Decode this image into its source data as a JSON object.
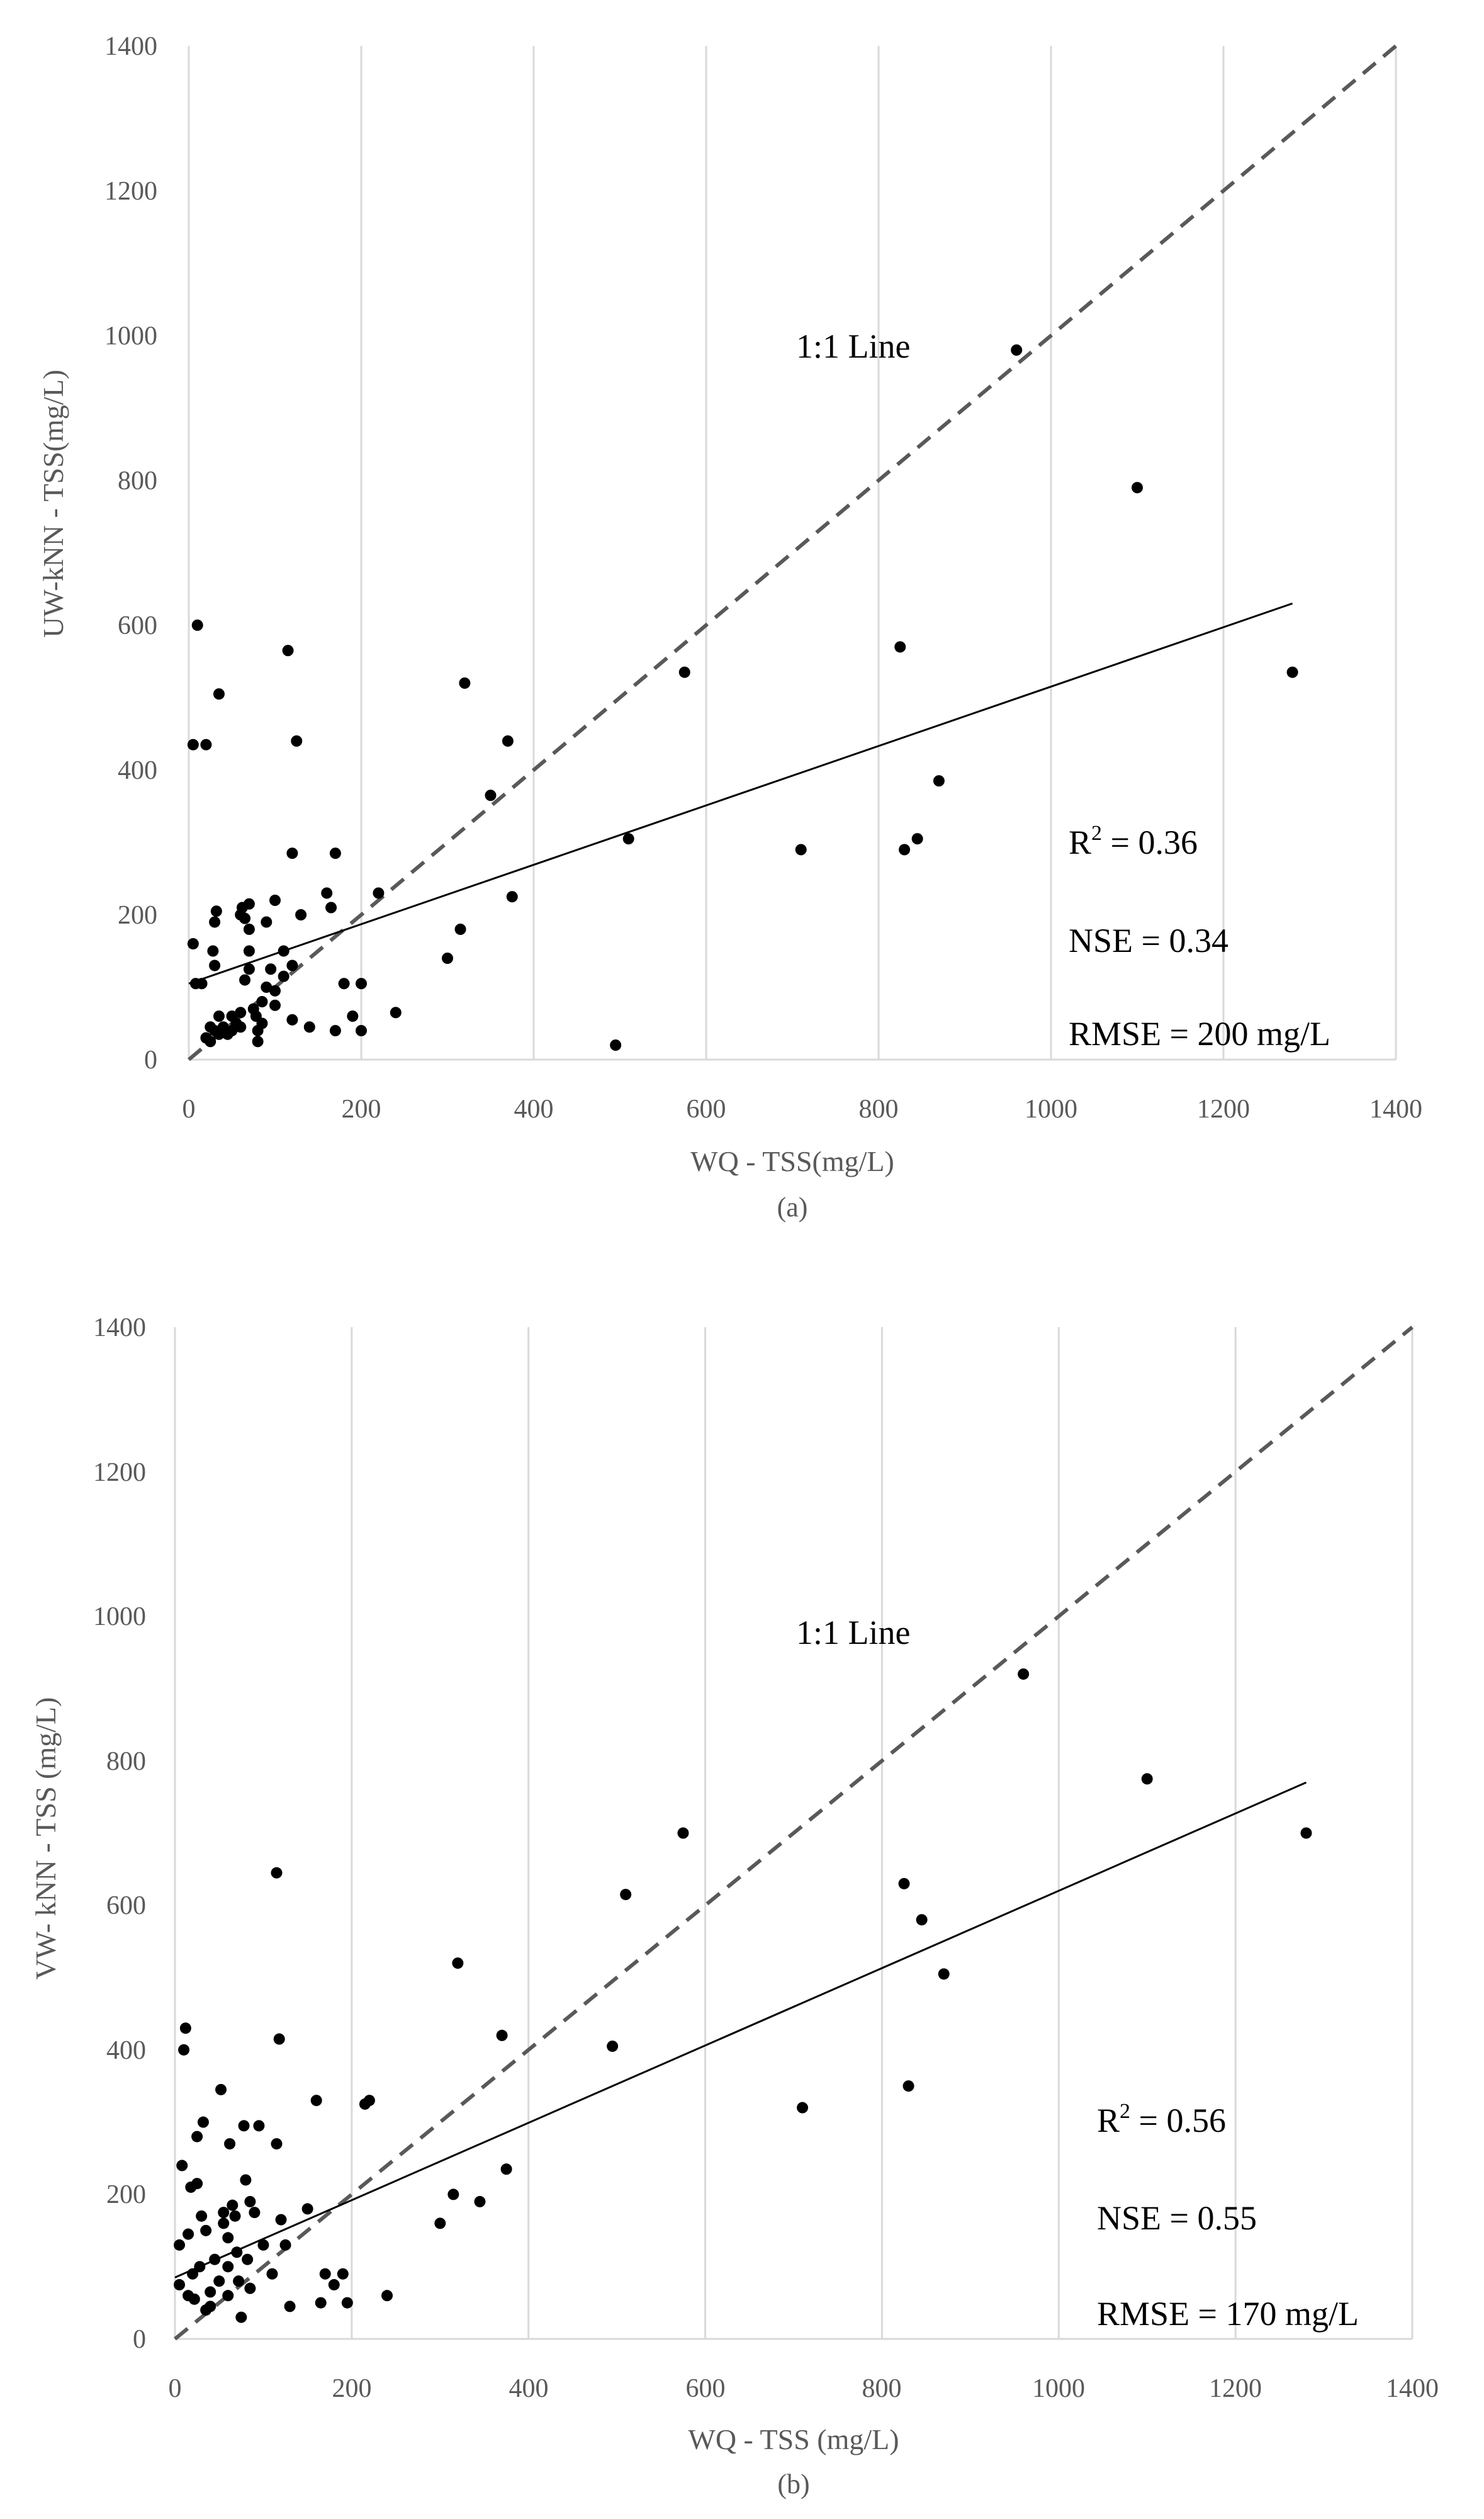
{
  "chart_data": [
    {
      "type": "scatter",
      "title": "",
      "panel_label": "(a)",
      "xlabel": "WQ - TSS(mg/L)",
      "ylabel": "UW-kNN - TSS(mg/L)",
      "xlim": [
        0,
        1400
      ],
      "ylim": [
        0,
        1400
      ],
      "xticks": [
        "0",
        "200",
        "400",
        "600",
        "800",
        "1000",
        "1200",
        "1400"
      ],
      "yticks": [
        "0",
        "200",
        "400",
        "600",
        "800",
        "1000",
        "1200",
        "1400"
      ],
      "grid": "vertical",
      "reference_line": {
        "label": "1:1 Line",
        "from": [
          0,
          0
        ],
        "to": [
          1400,
          1400
        ],
        "style": "dashed"
      },
      "trendline": {
        "from": [
          0,
          105
        ],
        "to": [
          1280,
          630
        ],
        "style": "solid"
      },
      "annotations": {
        "r2_label": "R",
        "r2_sup": "2",
        "r2_value": " = 0.36",
        "nse": "NSE = 0.34",
        "rmse": "RMSE = 200 mg/L"
      },
      "points": [
        [
          5,
          160
        ],
        [
          8,
          105
        ],
        [
          10,
          600
        ],
        [
          5,
          435
        ],
        [
          20,
          435
        ],
        [
          15,
          105
        ],
        [
          20,
          30
        ],
        [
          25,
          25
        ],
        [
          25,
          45
        ],
        [
          30,
          40
        ],
        [
          35,
          505
        ],
        [
          28,
          150
        ],
        [
          30,
          130
        ],
        [
          30,
          190
        ],
        [
          32,
          205
        ],
        [
          35,
          35
        ],
        [
          35,
          60
        ],
        [
          40,
          45
        ],
        [
          45,
          35
        ],
        [
          50,
          40
        ],
        [
          50,
          60
        ],
        [
          55,
          50
        ],
        [
          60,
          65
        ],
        [
          60,
          200
        ],
        [
          62,
          210
        ],
        [
          65,
          195
        ],
        [
          65,
          110
        ],
        [
          70,
          215
        ],
        [
          70,
          180
        ],
        [
          70,
          150
        ],
        [
          70,
          125
        ],
        [
          75,
          70
        ],
        [
          78,
          60
        ],
        [
          80,
          40
        ],
        [
          80,
          25
        ],
        [
          85,
          80
        ],
        [
          85,
          50
        ],
        [
          90,
          190
        ],
        [
          95,
          125
        ],
        [
          100,
          220
        ],
        [
          100,
          95
        ],
        [
          100,
          75
        ],
        [
          110,
          150
        ],
        [
          110,
          115
        ],
        [
          115,
          565
        ],
        [
          120,
          285
        ],
        [
          125,
          440
        ],
        [
          120,
          130
        ],
        [
          120,
          55
        ],
        [
          130,
          200
        ],
        [
          140,
          45
        ],
        [
          160,
          230
        ],
        [
          165,
          210
        ],
        [
          170,
          285
        ],
        [
          170,
          40
        ],
        [
          180,
          105
        ],
        [
          190,
          60
        ],
        [
          200,
          40
        ],
        [
          200,
          105
        ],
        [
          220,
          230
        ],
        [
          240,
          65
        ],
        [
          300,
          140
        ],
        [
          315,
          180
        ],
        [
          320,
          520
        ],
        [
          350,
          365
        ],
        [
          370,
          440
        ],
        [
          375,
          225
        ],
        [
          495,
          20
        ],
        [
          510,
          305
        ],
        [
          575,
          535
        ],
        [
          710,
          290
        ],
        [
          825,
          570
        ],
        [
          830,
          290
        ],
        [
          845,
          305
        ],
        [
          870,
          385
        ],
        [
          960,
          980
        ],
        [
          1100,
          790
        ],
        [
          1280,
          535
        ],
        [
          90,
          100
        ],
        [
          60,
          45
        ]
      ]
    },
    {
      "type": "scatter",
      "title": "",
      "panel_label": "(b)",
      "xlabel": "WQ - TSS  (mg/L)",
      "ylabel": "VW- kNN - TSS  (mg/L)",
      "xlim": [
        0,
        1400
      ],
      "ylim": [
        0,
        1400
      ],
      "xticks": [
        "0",
        "200",
        "400",
        "600",
        "800",
        "1000",
        "1200",
        "1400"
      ],
      "yticks": [
        "0",
        "200",
        "400",
        "600",
        "800",
        "1000",
        "1200",
        "1400"
      ],
      "grid": "vertical",
      "reference_line": {
        "label": "1:1 Line",
        "from": [
          0,
          0
        ],
        "to": [
          1400,
          1400
        ],
        "style": "dashed"
      },
      "trendline": {
        "from": [
          0,
          85
        ],
        "to": [
          1280,
          770
        ],
        "style": "solid"
      },
      "annotations": {
        "r2_label": "R",
        "r2_sup": "2",
        "r2_value": " = 0.56",
        "nse": "NSE = 0.55",
        "rmse": "RMSE = 170 mg/L"
      },
      "points": [
        [
          5,
          130
        ],
        [
          5,
          75
        ],
        [
          8,
          240
        ],
        [
          10,
          400
        ],
        [
          12,
          430
        ],
        [
          15,
          145
        ],
        [
          15,
          60
        ],
        [
          18,
          210
        ],
        [
          20,
          90
        ],
        [
          22,
          55
        ],
        [
          25,
          280
        ],
        [
          25,
          215
        ],
        [
          28,
          100
        ],
        [
          30,
          170
        ],
        [
          32,
          300
        ],
        [
          35,
          150
        ],
        [
          35,
          40
        ],
        [
          40,
          65
        ],
        [
          45,
          110
        ],
        [
          50,
          80
        ],
        [
          52,
          345
        ],
        [
          55,
          175
        ],
        [
          55,
          160
        ],
        [
          60,
          140
        ],
        [
          60,
          100
        ],
        [
          62,
          270
        ],
        [
          65,
          185
        ],
        [
          68,
          170
        ],
        [
          70,
          120
        ],
        [
          72,
          80
        ],
        [
          75,
          30
        ],
        [
          78,
          295
        ],
        [
          80,
          220
        ],
        [
          82,
          110
        ],
        [
          85,
          190
        ],
        [
          85,
          70
        ],
        [
          90,
          175
        ],
        [
          95,
          295
        ],
        [
          100,
          130
        ],
        [
          110,
          90
        ],
        [
          115,
          645
        ],
        [
          115,
          270
        ],
        [
          118,
          415
        ],
        [
          120,
          165
        ],
        [
          125,
          130
        ],
        [
          130,
          45
        ],
        [
          150,
          180
        ],
        [
          160,
          330
        ],
        [
          165,
          50
        ],
        [
          170,
          90
        ],
        [
          180,
          75
        ],
        [
          190,
          90
        ],
        [
          195,
          50
        ],
        [
          215,
          325
        ],
        [
          220,
          330
        ],
        [
          240,
          60
        ],
        [
          300,
          160
        ],
        [
          315,
          200
        ],
        [
          320,
          520
        ],
        [
          345,
          190
        ],
        [
          370,
          420
        ],
        [
          375,
          235
        ],
        [
          495,
          405
        ],
        [
          510,
          615
        ],
        [
          575,
          700
        ],
        [
          710,
          320
        ],
        [
          825,
          630
        ],
        [
          830,
          350
        ],
        [
          845,
          580
        ],
        [
          870,
          505
        ],
        [
          960,
          920
        ],
        [
          1100,
          775
        ],
        [
          1280,
          700
        ],
        [
          40,
          45
        ],
        [
          60,
          60
        ]
      ]
    }
  ]
}
